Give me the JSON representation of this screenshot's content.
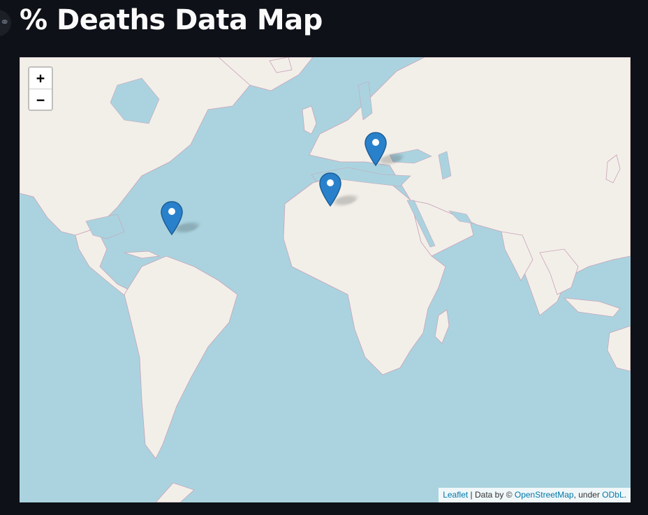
{
  "page": {
    "title": "% Deaths Data Map",
    "anchor_icon": "link-icon"
  },
  "map": {
    "ocean_color": "#aad3df",
    "land_color": "#f2efe9",
    "border_color": "#c9a3b8",
    "zoom_in_label": "+",
    "zoom_out_label": "−",
    "marker_color": "#2a81cb",
    "markers": [
      {
        "id": "caribbean"
      },
      {
        "id": "north-africa"
      },
      {
        "id": "balkans"
      }
    ],
    "attribution": {
      "leaflet": "Leaflet",
      "separator": " | Data by © ",
      "osm": "OpenStreetMap",
      "under": ", under ",
      "odbl": "ODbL",
      "end": "."
    }
  }
}
